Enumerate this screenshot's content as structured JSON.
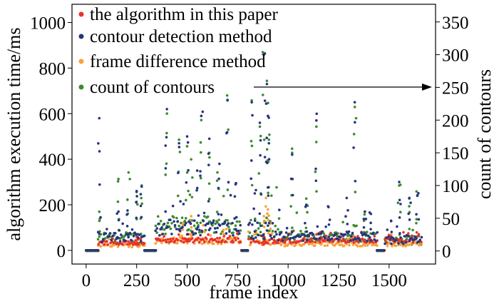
{
  "chart_data": {
    "type": "scatter",
    "xlabel": "frame index",
    "ylabel_left": "algorithm execution time/ms",
    "ylabel_right": "count of contours",
    "xlim": [
      -70,
      1730
    ],
    "ylim_left": [
      -60,
      1080
    ],
    "ylim_right": [
      -20,
      377
    ],
    "x_ticks": [
      "0",
      "250",
      "500",
      "750",
      "1000",
      "1250",
      "1500"
    ],
    "x_tick_values": [
      0,
      250,
      500,
      750,
      1000,
      1250,
      1500
    ],
    "y_left_ticks": [
      "0",
      "200",
      "400",
      "600",
      "800",
      "1000"
    ],
    "y_left_tick_values": [
      0,
      200,
      400,
      600,
      800,
      1000
    ],
    "y_right_ticks": [
      "0",
      "50",
      "100",
      "150",
      "200",
      "250",
      "300",
      "350"
    ],
    "y_right_tick_values": [
      0,
      50,
      100,
      150,
      200,
      250,
      300,
      350
    ],
    "grid": false,
    "legend_position": "top-left",
    "annotation_arrow": {
      "from_label": "count of contours",
      "points_to": "right axis"
    },
    "series": [
      {
        "name": "the algorithm in this paper",
        "color": "#e8312a",
        "axis": "left",
        "segments": [
          {
            "x_start": 0,
            "x_end": 60,
            "base": 0,
            "spread": 0,
            "spikes": []
          },
          {
            "x_start": 60,
            "x_end": 290,
            "base": 30,
            "spread": 12,
            "spikes": [
              [
                250,
                60
              ]
            ]
          },
          {
            "x_start": 290,
            "x_end": 345,
            "base": 0,
            "spread": 0,
            "spikes": []
          },
          {
            "x_start": 345,
            "x_end": 770,
            "base": 42,
            "spread": 15,
            "spikes": [
              [
                500,
                70
              ]
            ]
          },
          {
            "x_start": 770,
            "x_end": 805,
            "base": 0,
            "spread": 0,
            "spikes": []
          },
          {
            "x_start": 805,
            "x_end": 960,
            "base": 38,
            "spread": 14,
            "spikes": [
              [
                880,
                60
              ]
            ]
          },
          {
            "x_start": 960,
            "x_end": 1440,
            "base": 40,
            "spread": 14,
            "spikes": [
              [
                1160,
                80
              ]
            ]
          },
          {
            "x_start": 1440,
            "x_end": 1480,
            "base": 0,
            "spread": 0,
            "spikes": []
          },
          {
            "x_start": 1480,
            "x_end": 1660,
            "base": 40,
            "spread": 14,
            "spikes": []
          }
        ]
      },
      {
        "name": "contour detection method",
        "color": "#27347f",
        "axis": "left",
        "segments": [
          {
            "x_start": 0,
            "x_end": 60,
            "base": 0,
            "spread": 0,
            "spikes": []
          },
          {
            "x_start": 60,
            "x_end": 290,
            "base": 50,
            "spread": 30,
            "spikes": [
              [
                65,
                580
              ],
              [
                250,
                260
              ],
              [
                275,
                280
              ],
              [
                160,
                170
              ],
              [
                205,
                175
              ]
            ]
          },
          {
            "x_start": 290,
            "x_end": 345,
            "base": 0,
            "spread": 0,
            "spikes": []
          },
          {
            "x_start": 345,
            "x_end": 770,
            "base": 90,
            "spread": 50,
            "spikes": [
              [
                400,
                620
              ],
              [
                570,
                590
              ],
              [
                610,
                490
              ],
              [
                700,
                660
              ],
              [
                460,
                470
              ],
              [
                500,
                500
              ],
              [
                550,
                350
              ],
              [
                660,
                380
              ],
              [
                740,
                290
              ]
            ]
          },
          {
            "x_start": 770,
            "x_end": 805,
            "base": 0,
            "spread": 0,
            "spikes": []
          },
          {
            "x_start": 805,
            "x_end": 960,
            "base": 70,
            "spread": 60,
            "spikes": [
              [
                820,
                650
              ],
              [
                860,
                560
              ],
              [
                880,
                860
              ],
              [
                895,
                730
              ],
              [
                900,
                590
              ],
              [
                905,
                470
              ],
              [
                835,
                250
              ]
            ]
          },
          {
            "x_start": 960,
            "x_end": 1440,
            "base": 55,
            "spread": 30,
            "spikes": [
              [
                1020,
                420
              ],
              [
                1090,
                200
              ],
              [
                1140,
                570
              ],
              [
                1200,
                190
              ],
              [
                1290,
                230
              ],
              [
                1330,
                650
              ],
              [
                1380,
                170
              ],
              [
                1410,
                160
              ]
            ]
          },
          {
            "x_start": 1440,
            "x_end": 1480,
            "base": 0,
            "spread": 0,
            "spikes": []
          },
          {
            "x_start": 1480,
            "x_end": 1660,
            "base": 40,
            "spread": 25,
            "spikes": [
              [
                1550,
                300
              ],
              [
                1600,
                230
              ],
              [
                1640,
                240
              ],
              [
                1510,
                130
              ]
            ]
          }
        ]
      },
      {
        "name": "frame difference method",
        "color": "#f7a23a",
        "axis": "left",
        "segments": [
          {
            "x_start": 0,
            "x_end": 60,
            "base": 0,
            "spread": 0,
            "spikes": []
          },
          {
            "x_start": 60,
            "x_end": 290,
            "base": 20,
            "spread": 12,
            "spikes": [
              [
                250,
                60
              ]
            ]
          },
          {
            "x_start": 290,
            "x_end": 345,
            "base": 0,
            "spread": 0,
            "spikes": []
          },
          {
            "x_start": 345,
            "x_end": 770,
            "base": 38,
            "spread": 20,
            "spikes": [
              [
                480,
                120
              ],
              [
                520,
                150
              ],
              [
                580,
                110
              ],
              [
                680,
                90
              ]
            ]
          },
          {
            "x_start": 770,
            "x_end": 805,
            "base": 0,
            "spread": 0,
            "spikes": []
          },
          {
            "x_start": 805,
            "x_end": 960,
            "base": 30,
            "spread": 20,
            "spikes": [
              [
                890,
                230
              ],
              [
                900,
                180
              ],
              [
                910,
                120
              ],
              [
                880,
                150
              ]
            ]
          },
          {
            "x_start": 960,
            "x_end": 1440,
            "base": 25,
            "spread": 14,
            "spikes": [
              [
                1160,
                70
              ],
              [
                1320,
                60
              ]
            ]
          },
          {
            "x_start": 1440,
            "x_end": 1480,
            "base": 0,
            "spread": 0,
            "spikes": []
          },
          {
            "x_start": 1480,
            "x_end": 1660,
            "base": 25,
            "spread": 14,
            "spikes": []
          }
        ]
      },
      {
        "name": "count of contours",
        "color": "#3b8b2e",
        "axis": "right",
        "segments": [
          {
            "x_start": 0,
            "x_end": 60,
            "base": 0,
            "spread": 0,
            "spikes": []
          },
          {
            "x_start": 60,
            "x_end": 290,
            "base": 18,
            "spread": 12,
            "spikes": [
              [
                65,
                60
              ],
              [
                160,
                110
              ],
              [
                210,
                120
              ],
              [
                250,
                90
              ],
              [
                275,
                100
              ]
            ]
          },
          {
            "x_start": 290,
            "x_end": 345,
            "base": 0,
            "spread": 0,
            "spikes": []
          },
          {
            "x_start": 345,
            "x_end": 770,
            "base": 35,
            "spread": 20,
            "spikes": [
              [
                400,
                210
              ],
              [
                500,
                160
              ],
              [
                520,
                140
              ],
              [
                570,
                200
              ],
              [
                610,
                150
              ],
              [
                700,
                230
              ],
              [
                460,
                170
              ],
              [
                650,
                120
              ]
            ]
          },
          {
            "x_start": 770,
            "x_end": 805,
            "base": 0,
            "spread": 0,
            "spikes": []
          },
          {
            "x_start": 805,
            "x_end": 960,
            "base": 30,
            "spread": 25,
            "spikes": [
              [
                820,
                230
              ],
              [
                860,
                190
              ],
              [
                880,
                300
              ],
              [
                895,
                260
              ],
              [
                905,
                170
              ]
            ]
          },
          {
            "x_start": 960,
            "x_end": 1440,
            "base": 20,
            "spread": 12,
            "spikes": [
              [
                1020,
                150
              ],
              [
                1090,
                80
              ],
              [
                1140,
                190
              ],
              [
                1330,
                220
              ],
              [
                1380,
                60
              ]
            ]
          },
          {
            "x_start": 1440,
            "x_end": 1480,
            "base": 0,
            "spread": 0,
            "spikes": []
          },
          {
            "x_start": 1480,
            "x_end": 1660,
            "base": 14,
            "spread": 10,
            "spikes": [
              [
                1550,
                100
              ],
              [
                1600,
                80
              ],
              [
                1640,
                85
              ]
            ]
          }
        ]
      }
    ]
  }
}
